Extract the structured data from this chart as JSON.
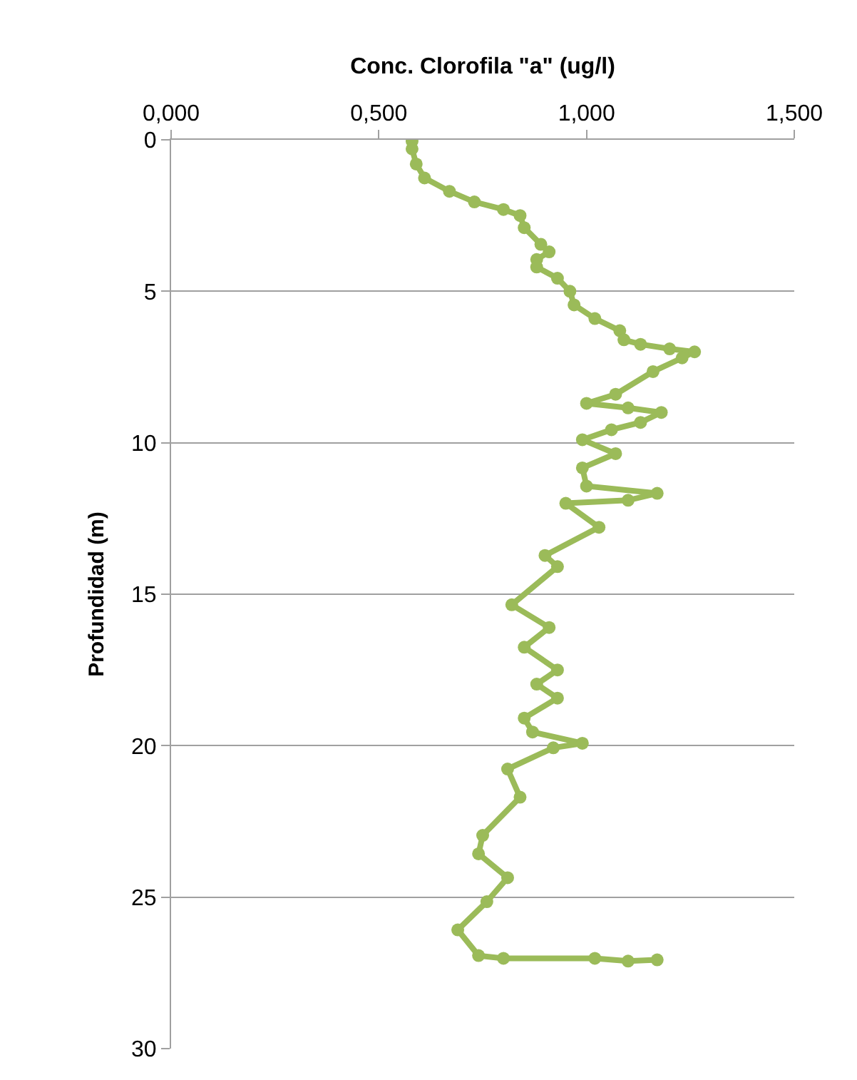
{
  "chart_data": {
    "type": "line",
    "xlabel": "Conc. Clorofila \"a\" (ug/l)",
    "ylabel": "Profundidad (m)",
    "xlim": [
      0,
      1.5
    ],
    "xticks": [
      {
        "value": 0,
        "label": "0,000"
      },
      {
        "value": 0.5,
        "label": "0,500"
      },
      {
        "value": 1,
        "label": "1,000"
      },
      {
        "value": 1.5,
        "label": "1,500"
      }
    ],
    "ylim": [
      30,
      0
    ],
    "yticks": [
      0,
      5,
      10,
      15,
      20,
      25,
      30
    ],
    "grid": "y",
    "marker": "circle",
    "line_style": "solid",
    "series": [
      {
        "color": "#9bbb59",
        "x": [
          0.58,
          0.58,
          0.59,
          0.61,
          0.67,
          0.73,
          0.8,
          0.84,
          0.85,
          0.89,
          0.91,
          0.88,
          0.88,
          0.93,
          0.96,
          0.97,
          1.02,
          1.08,
          1.09,
          1.13,
          1.2,
          1.26,
          1.23,
          1.16,
          1.07,
          1.0,
          1.1,
          1.18,
          1.13,
          1.06,
          0.99,
          1.07,
          0.99,
          1.0,
          1.17,
          1.1,
          0.95,
          1.03,
          0.9,
          0.93,
          0.82,
          0.91,
          0.85,
          0.93,
          0.88,
          0.93,
          0.85,
          0.87,
          0.99,
          0.92,
          0.81,
          0.84,
          0.75,
          0.74,
          0.81,
          0.76,
          0.69,
          0.74,
          0.8,
          1.02,
          1.1,
          1.17
        ],
        "values": [
          0.05,
          0.3,
          0.8,
          1.26,
          1.7,
          2.05,
          2.3,
          2.5,
          2.9,
          3.45,
          3.7,
          3.95,
          4.2,
          4.57,
          5.0,
          5.45,
          5.9,
          6.3,
          6.6,
          6.75,
          6.9,
          7.0,
          7.2,
          7.65,
          8.4,
          8.7,
          8.85,
          9.0,
          9.33,
          9.57,
          9.9,
          10.36,
          10.83,
          11.43,
          11.67,
          11.9,
          12.0,
          12.79,
          13.72,
          14.09,
          15.35,
          16.1,
          16.75,
          17.5,
          17.97,
          18.43,
          19.09,
          19.55,
          19.92,
          20.07,
          20.77,
          21.7,
          22.96,
          23.57,
          24.36,
          25.15,
          26.08,
          26.93,
          27.02,
          27.02,
          27.11,
          27.07
        ]
      }
    ]
  }
}
